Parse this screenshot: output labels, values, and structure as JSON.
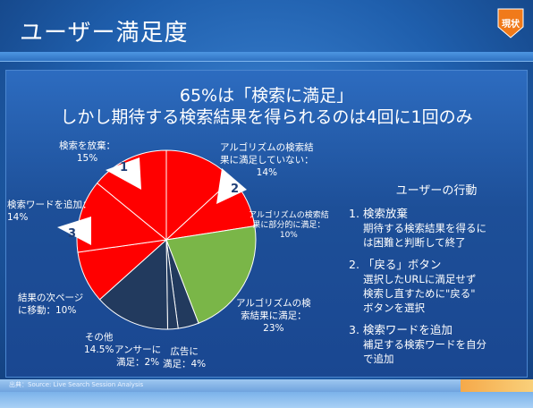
{
  "slide": {
    "title": "ユーザー満足度",
    "badge": "現状",
    "headline_1": "65%は「検索に満足」",
    "headline_2": "しかし期待する検索結果を得られるのは4回に1回のみ",
    "source": "出典：Source: Live Search Session Analysis"
  },
  "chart_data": {
    "type": "pie",
    "slices": [
      {
        "label_1": "アルゴリズムの検索結",
        "label_2": "果に満足していない：",
        "label_3": "14%",
        "value": 14,
        "color": "#ff0000"
      },
      {
        "label_1": "アルゴリズムの検索結",
        "label_2": "果に部分的に満足：",
        "label_3": "10%",
        "value": 10,
        "color": "#ff0000"
      },
      {
        "label_1": "アルゴリズムの検",
        "label_2": "索結果に満足：",
        "label_3": "23%",
        "value": 23,
        "color": "#7ab648"
      },
      {
        "label_1": "広告に",
        "label_2": "満足：4%",
        "label_3": "",
        "value": 4,
        "color": "#223a5e"
      },
      {
        "label_1": "アンサーに",
        "label_2": "満足：2%",
        "label_3": "",
        "value": 2,
        "color": "#223a5e"
      },
      {
        "label_1": "その他",
        "label_2": "14.5%",
        "label_3": "",
        "value": 14.5,
        "color": "#223a5e"
      },
      {
        "label_1": "結果の次ページ",
        "label_2": "に移動：10%",
        "label_3": "",
        "value": 10,
        "color": "#ff0000"
      },
      {
        "label_1": "検索ワードを追加：",
        "label_2": "14%",
        "label_3": "",
        "value": 14,
        "color": "#ff0000"
      },
      {
        "label_1": "検索を放棄：",
        "label_2": "15%",
        "label_3": "",
        "value": 15,
        "color": "#ff0000"
      }
    ],
    "markers": [
      "1",
      "2",
      "3"
    ]
  },
  "panel": {
    "title": "ユーザーの行動",
    "items": [
      {
        "head": "1. 検索放棄",
        "desc_1": "期待する検索結果を得るに",
        "desc_2": "は困難と判断して終了"
      },
      {
        "head": "2. 「戻る」ボタン",
        "desc_1": "選択したURLに満足せず",
        "desc_2": "検索し直すために\"戻る\"",
        "desc_3": "ボタンを選択"
      },
      {
        "head": "3. 検索ワードを追加",
        "desc_1": "補足する検索ワードを自分",
        "desc_2": "で追加"
      }
    ]
  }
}
